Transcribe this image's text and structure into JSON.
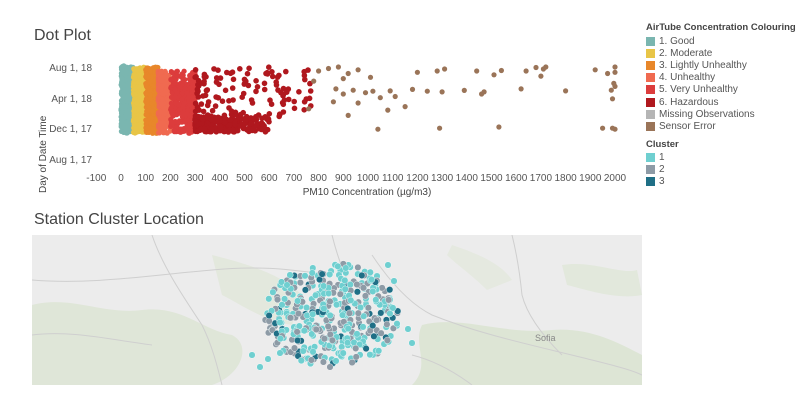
{
  "dot_plot": {
    "title": "Dot Plot",
    "x_label": "PM10 Concentration (µg/m3)",
    "y_label": "Day of Date Time",
    "x_ticks": [
      "-100",
      "0",
      "100",
      "200",
      "300",
      "400",
      "500",
      "600",
      "700",
      "800",
      "900",
      "1000",
      "1100",
      "1200",
      "1300",
      "1400",
      "1500",
      "1600",
      "1700",
      "1800",
      "1900",
      "2000"
    ],
    "y_ticks": [
      "Aug 1, 18",
      "Apr 1, 18",
      "Dec 1, 17",
      "Aug 1, 17"
    ]
  },
  "chart_data": {
    "type": "scatter",
    "title": "Dot Plot",
    "xlabel": "PM10 Concentration (µg/m3)",
    "ylabel": "Day of Date Time",
    "xlim": [
      -100,
      2000
    ],
    "ylim": [
      "2017-08-01",
      "2018-08-01"
    ],
    "series": [
      {
        "name": "1. Good",
        "color": "#7ab6b0",
        "x_range": [
          0,
          50
        ],
        "y_range": [
          "2017-11-15",
          "2018-08-10"
        ]
      },
      {
        "name": "2. Moderate",
        "color": "#e8c547",
        "x_range": [
          50,
          100
        ],
        "y_range": [
          "2017-11-15",
          "2018-08-05"
        ]
      },
      {
        "name": "3. Lightly Unhealthy",
        "color": "#e8872a",
        "x_range": [
          100,
          150
        ],
        "y_range": [
          "2017-11-15",
          "2018-08-05"
        ]
      },
      {
        "name": "4. Unhealthy",
        "color": "#f06a50",
        "x_range": [
          150,
          200
        ],
        "y_range": [
          "2017-11-15",
          "2018-07-20"
        ]
      },
      {
        "name": "5. Very Unhealthy",
        "color": "#dc3c3c",
        "x_range": [
          200,
          300
        ],
        "y_range": [
          "2017-11-15",
          "2018-07-20"
        ]
      },
      {
        "name": "6. Hazardous",
        "color": "#b0181e",
        "x_range": [
          300,
          780
        ],
        "y_range": [
          "2017-11-15",
          "2018-08-05"
        ]
      },
      {
        "name": "Missing Observations",
        "color": "#b5b5b5"
      },
      {
        "name": "Sensor Error",
        "color": "#9a7458",
        "x_range": [
          780,
          2000
        ],
        "y_range": [
          "2017-12-01",
          "2018-08-05"
        ]
      }
    ]
  },
  "legend": {
    "concentration_title": "AirTube Concentration Colouring",
    "concentration_items": [
      {
        "label": "1. Good",
        "color": "#7ab6b0"
      },
      {
        "label": "2. Moderate",
        "color": "#e8c547"
      },
      {
        "label": "3. Lightly Unhealthy",
        "color": "#e8872a"
      },
      {
        "label": "4. Unhealthy",
        "color": "#f06a50"
      },
      {
        "label": "5. Very Unhealthy",
        "color": "#dc3c3c"
      },
      {
        "label": "6. Hazardous",
        "color": "#b0181e"
      },
      {
        "label": "Missing Observations",
        "color": "#b5b5b5"
      },
      {
        "label": "Sensor Error",
        "color": "#9a7458"
      }
    ],
    "cluster_title": "Cluster",
    "cluster_items": [
      {
        "label": "1",
        "color": "#6fcfd0"
      },
      {
        "label": "2",
        "color": "#8e9ba6"
      },
      {
        "label": "3",
        "color": "#1f6f86"
      }
    ]
  },
  "map": {
    "title": "Station Cluster Location",
    "city_label": "Sofia"
  }
}
